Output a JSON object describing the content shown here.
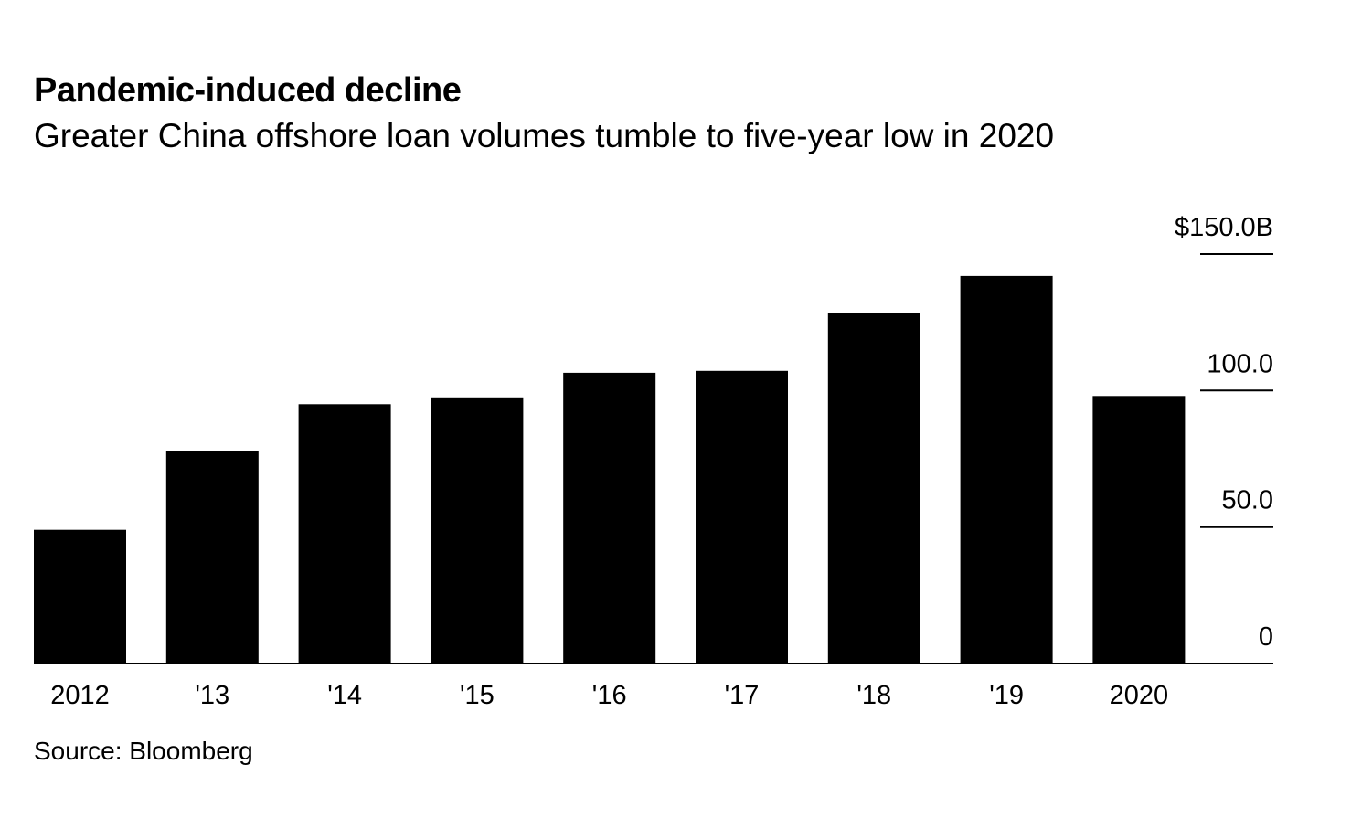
{
  "header": {
    "title": "Pandemic-induced decline",
    "subtitle": "Greater China offshore loan volumes tumble to five-year low in 2020"
  },
  "footer": {
    "source": "Source: Bloomberg"
  },
  "colors": {
    "bar": "#000000",
    "text": "#000000",
    "background": "#ffffff"
  },
  "chart_data": {
    "type": "bar",
    "title": "Pandemic-induced decline",
    "subtitle": "Greater China offshore loan volumes tumble to five-year low in 2020",
    "categories": [
      "2012",
      "'13",
      "'14",
      "'15",
      "'16",
      "'17",
      "'18",
      "'19",
      "2020"
    ],
    "values": [
      49,
      78,
      95,
      97.5,
      106.5,
      107.2,
      128.5,
      142,
      98
    ],
    "ylim": [
      0,
      150
    ],
    "y_ticks": [
      {
        "value": 0,
        "label": "0"
      },
      {
        "value": 50,
        "label": "50.0"
      },
      {
        "value": 100,
        "label": "100.0"
      },
      {
        "value": 150,
        "label": "$150.0B"
      }
    ],
    "axis_position": "right",
    "grid": false,
    "legend": "none",
    "xlabel": "",
    "ylabel": ""
  }
}
